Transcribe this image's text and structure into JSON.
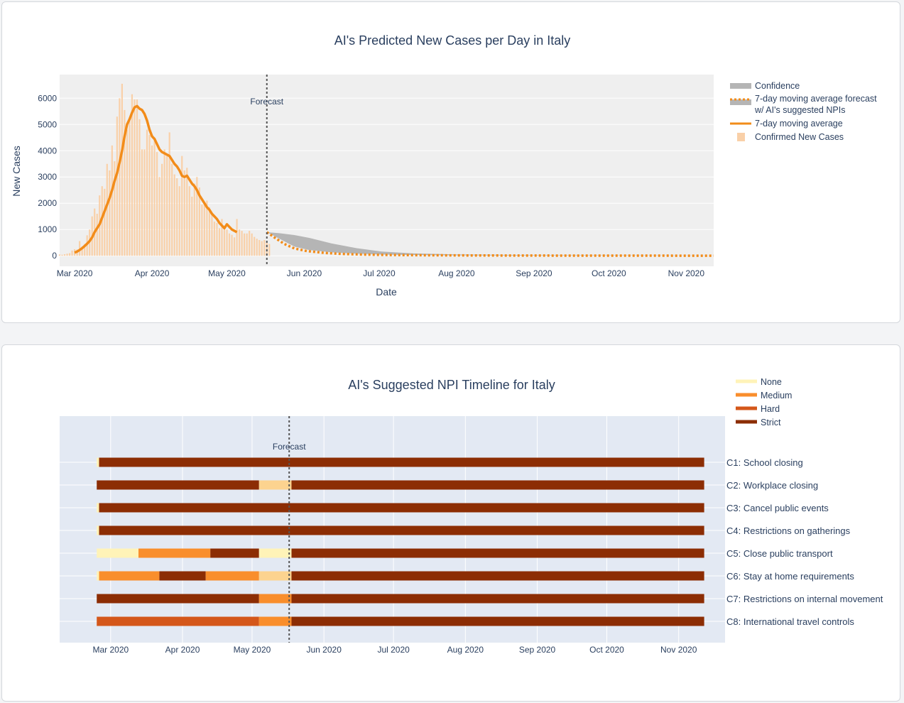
{
  "chart_data": [
    {
      "type": "bar+line",
      "title": "AI's Predicted New Cases per Day in Italy",
      "xlabel": "Date",
      "ylabel": "New Cases",
      "x_range": [
        "2020-02-24",
        "2020-11-12"
      ],
      "ylim": [
        -400,
        6900
      ],
      "y_ticks": [
        0,
        1000,
        2000,
        3000,
        4000,
        5000,
        6000
      ],
      "x_ticks": [
        {
          "date": "2020-03-01",
          "label": "Mar 2020"
        },
        {
          "date": "2020-04-01",
          "label": "Apr 2020"
        },
        {
          "date": "2020-05-01",
          "label": "May 2020"
        },
        {
          "date": "2020-06-01",
          "label": "Jun 2020"
        },
        {
          "date": "2020-07-01",
          "label": "Jul 2020"
        },
        {
          "date": "2020-08-01",
          "label": "Aug 2020"
        },
        {
          "date": "2020-09-01",
          "label": "Sep 2020"
        },
        {
          "date": "2020-10-01",
          "label": "Oct 2020"
        },
        {
          "date": "2020-11-01",
          "label": "Nov 2020"
        }
      ],
      "forecast_date": "2020-05-17",
      "forecast_label": "Forecast",
      "legend_position": "right",
      "legend": [
        {
          "name": "Confidence",
          "style": "band",
          "color": "#b5b5b5"
        },
        {
          "name": "7-day moving average forecast",
          "name2": "w/ AI's suggested NPIs",
          "style": "dotted",
          "color": "#f28c1a"
        },
        {
          "name": "7-day moving average",
          "style": "line",
          "color": "#f28c1a"
        },
        {
          "name": "Confirmed New Cases",
          "style": "bar",
          "color": "#f9d0a8"
        }
      ],
      "confirmed_new_cases": {
        "start_date": "2020-02-24",
        "values": [
          50,
          40,
          60,
          80,
          100,
          200,
          250,
          240,
          560,
          350,
          450,
          780,
          1000,
          1500,
          1800,
          1600,
          2300,
          2650,
          2550,
          3500,
          3250,
          4200,
          3600,
          5300,
          6000,
          6550,
          5550,
          4800,
          5200,
          6150,
          5950,
          5950,
          5200,
          4050,
          4050,
          4800,
          4600,
          4200,
          4450,
          3950,
          3000,
          3500,
          4050,
          3800,
          4700,
          3500,
          3100,
          2950,
          2650,
          3800,
          3250,
          3350,
          2650,
          2250,
          2750,
          3000,
          2600,
          1950,
          2050,
          2100,
          1850,
          1650,
          1300,
          1250,
          1050,
          1400,
          1150,
          1000,
          850,
          800,
          700,
          1400,
          1000,
          950,
          850,
          850,
          950,
          850,
          720,
          650,
          600,
          560,
          600,
          500,
          450
        ]
      },
      "moving_average": {
        "start_date": "2020-03-01",
        "values": [
          120,
          160,
          220,
          290,
          370,
          460,
          560,
          700,
          900,
          1050,
          1200,
          1450,
          1700,
          1950,
          2200,
          2500,
          2850,
          3150,
          3550,
          4000,
          4550,
          5000,
          5200,
          5450,
          5650,
          5700,
          5600,
          5550,
          5400,
          5150,
          4800,
          4550,
          4450,
          4250,
          4050,
          3950,
          3900,
          3850,
          3800,
          3650,
          3500,
          3400,
          3250,
          3050,
          3000,
          3050,
          2900,
          2750,
          2650,
          2500,
          2300,
          2150,
          2000,
          1850,
          1750,
          1600,
          1500,
          1400,
          1250,
          1150,
          1050,
          1200,
          1100,
          1000,
          950,
          900
        ]
      },
      "forecast_series": [
        {
          "date": "2020-05-17",
          "value": 900
        },
        {
          "date": "2020-05-20",
          "value": 700
        },
        {
          "date": "2020-05-24",
          "value": 450
        },
        {
          "date": "2020-05-28",
          "value": 280
        },
        {
          "date": "2020-06-02",
          "value": 180
        },
        {
          "date": "2020-06-09",
          "value": 110
        },
        {
          "date": "2020-06-16",
          "value": 70
        },
        {
          "date": "2020-06-25",
          "value": 45
        },
        {
          "date": "2020-07-05",
          "value": 30
        },
        {
          "date": "2020-07-20",
          "value": 20
        },
        {
          "date": "2020-08-10",
          "value": 12
        },
        {
          "date": "2020-09-15",
          "value": 6
        },
        {
          "date": "2020-11-12",
          "value": 3
        }
      ],
      "confidence_band": [
        {
          "date": "2020-05-17",
          "low": 900,
          "high": 900
        },
        {
          "date": "2020-05-22",
          "low": 650,
          "high": 860
        },
        {
          "date": "2020-05-28",
          "low": 350,
          "high": 790
        },
        {
          "date": "2020-06-03",
          "low": 220,
          "high": 680
        },
        {
          "date": "2020-06-12",
          "low": 130,
          "high": 470
        },
        {
          "date": "2020-06-22",
          "low": 80,
          "high": 290
        },
        {
          "date": "2020-07-02",
          "low": 50,
          "high": 160
        },
        {
          "date": "2020-07-15",
          "low": 30,
          "high": 90
        },
        {
          "date": "2020-08-01",
          "low": 15,
          "high": 50
        },
        {
          "date": "2020-09-01",
          "low": 8,
          "high": 25
        },
        {
          "date": "2020-11-12",
          "low": 2,
          "high": 8
        }
      ]
    },
    {
      "type": "timeline",
      "title": "AI's Suggested NPI Timeline for Italy",
      "x_range": [
        "2020-02-08",
        "2020-11-21"
      ],
      "x_ticks": [
        {
          "date": "2020-03-01",
          "label": "Mar 2020"
        },
        {
          "date": "2020-04-01",
          "label": "Apr 2020"
        },
        {
          "date": "2020-05-01",
          "label": "May 2020"
        },
        {
          "date": "2020-06-01",
          "label": "Jun 2020"
        },
        {
          "date": "2020-07-01",
          "label": "Jul 2020"
        },
        {
          "date": "2020-08-01",
          "label": "Aug 2020"
        },
        {
          "date": "2020-09-01",
          "label": "Sep 2020"
        },
        {
          "date": "2020-10-01",
          "label": "Oct 2020"
        },
        {
          "date": "2020-11-01",
          "label": "Nov 2020"
        }
      ],
      "forecast_date": "2020-05-17",
      "forecast_label": "Forecast",
      "legend_position": "top-right",
      "levels": [
        {
          "name": "None",
          "color": "#fff3b8"
        },
        {
          "name": "Medium",
          "color": "#f98e2c"
        },
        {
          "name": "Hard",
          "color": "#d4571a"
        },
        {
          "name": "Strict",
          "color": "#8c2d04"
        }
      ],
      "historical_tint_color": "#fcd38f",
      "rows": [
        {
          "label": "C1: School closing",
          "segments": [
            {
              "start": "2020-02-24",
              "end": "2020-02-25",
              "level": "None"
            },
            {
              "start": "2020-02-25",
              "end": "2020-11-12",
              "level": "Strict"
            }
          ]
        },
        {
          "label": "C2: Workplace closing",
          "segments": [
            {
              "start": "2020-02-24",
              "end": "2020-05-04",
              "level": "Strict"
            },
            {
              "start": "2020-05-04",
              "end": "2020-05-18",
              "level": "Medium",
              "tint": true
            },
            {
              "start": "2020-05-18",
              "end": "2020-11-12",
              "level": "Strict"
            }
          ]
        },
        {
          "label": "C3: Cancel public events",
          "segments": [
            {
              "start": "2020-02-24",
              "end": "2020-02-25",
              "level": "None"
            },
            {
              "start": "2020-02-25",
              "end": "2020-11-12",
              "level": "Strict"
            }
          ]
        },
        {
          "label": "C4: Restrictions on gatherings",
          "segments": [
            {
              "start": "2020-02-24",
              "end": "2020-02-25",
              "level": "None"
            },
            {
              "start": "2020-02-25",
              "end": "2020-11-12",
              "level": "Strict"
            }
          ]
        },
        {
          "label": "C5: Close public transport",
          "segments": [
            {
              "start": "2020-02-24",
              "end": "2020-03-13",
              "level": "None"
            },
            {
              "start": "2020-03-13",
              "end": "2020-04-13",
              "level": "Medium"
            },
            {
              "start": "2020-04-13",
              "end": "2020-05-04",
              "level": "Strict"
            },
            {
              "start": "2020-05-04",
              "end": "2020-05-18",
              "level": "None"
            },
            {
              "start": "2020-05-18",
              "end": "2020-11-12",
              "level": "Strict"
            }
          ]
        },
        {
          "label": "C6: Stay at home requirements",
          "segments": [
            {
              "start": "2020-02-24",
              "end": "2020-02-25",
              "level": "None"
            },
            {
              "start": "2020-02-25",
              "end": "2020-03-22",
              "level": "Medium"
            },
            {
              "start": "2020-03-22",
              "end": "2020-04-11",
              "level": "Strict"
            },
            {
              "start": "2020-04-11",
              "end": "2020-05-04",
              "level": "Medium"
            },
            {
              "start": "2020-05-04",
              "end": "2020-05-18",
              "level": "Medium",
              "tint": true
            },
            {
              "start": "2020-05-18",
              "end": "2020-11-12",
              "level": "Strict"
            }
          ]
        },
        {
          "label": "C7: Restrictions on internal movement",
          "segments": [
            {
              "start": "2020-02-24",
              "end": "2020-05-04",
              "level": "Strict"
            },
            {
              "start": "2020-05-04",
              "end": "2020-05-18",
              "level": "Medium"
            },
            {
              "start": "2020-05-18",
              "end": "2020-11-12",
              "level": "Strict"
            }
          ]
        },
        {
          "label": "C8: International travel controls",
          "segments": [
            {
              "start": "2020-02-24",
              "end": "2020-05-04",
              "level": "Hard"
            },
            {
              "start": "2020-05-04",
              "end": "2020-05-18",
              "level": "Medium"
            },
            {
              "start": "2020-05-18",
              "end": "2020-11-12",
              "level": "Strict"
            }
          ]
        }
      ]
    }
  ]
}
